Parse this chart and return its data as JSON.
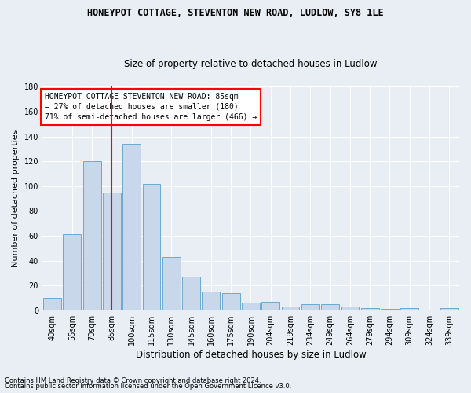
{
  "title1": "HONEYPOT COTTAGE, STEVENTON NEW ROAD, LUDLOW, SY8 1LE",
  "title2": "Size of property relative to detached houses in Ludlow",
  "xlabel": "Distribution of detached houses by size in Ludlow",
  "ylabel": "Number of detached properties",
  "categories": [
    "40sqm",
    "55sqm",
    "70sqm",
    "85sqm",
    "100sqm",
    "115sqm",
    "130sqm",
    "145sqm",
    "160sqm",
    "175sqm",
    "190sqm",
    "204sqm",
    "219sqm",
    "234sqm",
    "249sqm",
    "264sqm",
    "279sqm",
    "294sqm",
    "309sqm",
    "324sqm",
    "339sqm"
  ],
  "values": [
    10,
    61,
    120,
    95,
    134,
    102,
    43,
    27,
    15,
    14,
    6,
    7,
    3,
    5,
    5,
    3,
    2,
    1,
    2,
    0,
    2
  ],
  "bar_color": "#c8d8ea",
  "bar_edge_color": "#6aaad4",
  "vline_x_idx": 3,
  "vline_color": "red",
  "ylim": [
    0,
    180
  ],
  "yticks": [
    0,
    20,
    40,
    60,
    80,
    100,
    120,
    140,
    160,
    180
  ],
  "annotation_text": "HONEYPOT COTTAGE STEVENTON NEW ROAD: 85sqm\n← 27% of detached houses are smaller (180)\n71% of semi-detached houses are larger (466) →",
  "annotation_box_color": "white",
  "annotation_box_edge_color": "red",
  "footer1": "Contains HM Land Registry data © Crown copyright and database right 2024.",
  "footer2": "Contains public sector information licensed under the Open Government Licence v3.0.",
  "fig_bg_color": "#e8eef4",
  "plot_bg_color": "#e8eef4",
  "grid_color": "white",
  "title1_fontsize": 8.5,
  "title2_fontsize": 8.5,
  "ylabel_fontsize": 8,
  "xlabel_fontsize": 8.5,
  "tick_fontsize": 7,
  "ann_fontsize": 7,
  "footer_fontsize": 6
}
